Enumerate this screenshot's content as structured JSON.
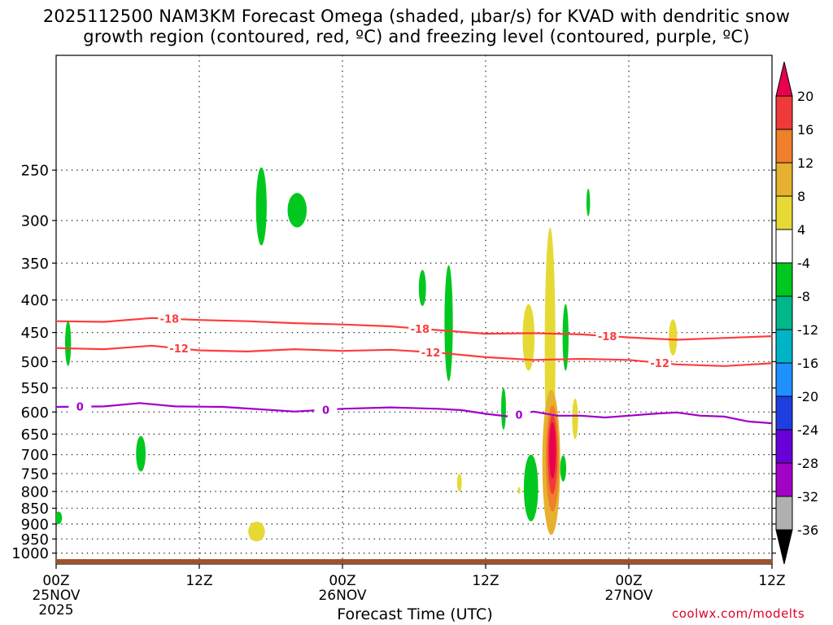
{
  "chart_data": {
    "type": "heatmap",
    "title": "2025112500 NAM3KM Forecast Omega (shaded, μbar/s) for KVAD with dendritic snow",
    "subtitle": "growth region (contoured, red, ºC) and freezing level (contoured, purple, ºC)",
    "xlabel": "Forecast Time (UTC)",
    "ylabel": "",
    "credit": "coolwx.com/modelts",
    "x_ticks": [
      {
        "hour": 0,
        "label": "00Z",
        "date": "25NOV",
        "year": "2025"
      },
      {
        "hour": 12,
        "label": "12Z"
      },
      {
        "hour": 24,
        "label": "00Z",
        "date": "26NOV"
      },
      {
        "hour": 36,
        "label": "12Z"
      },
      {
        "hour": 48,
        "label": "00Z",
        "date": "27NOV"
      },
      {
        "hour": 60,
        "label": "12Z"
      }
    ],
    "xlim": [
      0,
      60
    ],
    "ylim": [
      1040,
      165
    ],
    "y_scale": "log",
    "y_ticks": [
      250,
      300,
      350,
      400,
      450,
      500,
      550,
      600,
      650,
      700,
      750,
      800,
      850,
      900,
      950,
      1000
    ],
    "grid": true,
    "colorbar": {
      "labels": [
        "20",
        "16",
        "12",
        "8",
        "4",
        "-4",
        "-8",
        "-12",
        "-16",
        "-20",
        "-24",
        "-28",
        "-32",
        "-36"
      ],
      "colors": [
        "#e8004f",
        "#f03a3a",
        "#f07f2a",
        "#e6b12e",
        "#e6d934",
        "#ffffff",
        "#00c81e",
        "#00b88a",
        "#00b4c8",
        "#1e90ff",
        "#1f3ee0",
        "#6a00d8",
        "#a300c8",
        "#b0b0b0",
        "#000000"
      ]
    },
    "contours": [
      {
        "label": "-18",
        "color": "#ff3c3c",
        "points": [
          [
            0,
            432
          ],
          [
            4,
            433
          ],
          [
            8,
            427
          ],
          [
            12,
            430
          ],
          [
            16,
            432
          ],
          [
            20,
            435
          ],
          [
            24,
            437
          ],
          [
            28,
            440
          ],
          [
            32,
            446
          ],
          [
            36,
            452
          ],
          [
            40,
            451
          ],
          [
            44,
            453
          ],
          [
            48,
            458
          ],
          [
            52,
            462
          ],
          [
            56,
            459
          ],
          [
            60,
            456
          ]
        ],
        "label_at": [
          [
            9.5,
            430
          ],
          [
            30.5,
            445
          ],
          [
            46.2,
            455
          ]
        ]
      },
      {
        "label": "-12",
        "color": "#ff3c3c",
        "points": [
          [
            0,
            476
          ],
          [
            4,
            478
          ],
          [
            8,
            472
          ],
          [
            12,
            480
          ],
          [
            16,
            482
          ],
          [
            20,
            478
          ],
          [
            24,
            481
          ],
          [
            28,
            479
          ],
          [
            32,
            484
          ],
          [
            36,
            492
          ],
          [
            40,
            497
          ],
          [
            44,
            495
          ],
          [
            48,
            497
          ],
          [
            52,
            505
          ],
          [
            56,
            508
          ],
          [
            60,
            503
          ]
        ],
        "label_at": [
          [
            10.3,
            478
          ],
          [
            31.4,
            484
          ],
          [
            50.6,
            505
          ]
        ]
      },
      {
        "label": "0",
        "color": "#a000c8",
        "points": [
          [
            0,
            589
          ],
          [
            4,
            588
          ],
          [
            7,
            581
          ],
          [
            10,
            588
          ],
          [
            14,
            589
          ],
          [
            17,
            594
          ],
          [
            20,
            599
          ],
          [
            24,
            593
          ],
          [
            28,
            590
          ],
          [
            32,
            593
          ],
          [
            34,
            596
          ],
          [
            36,
            604
          ],
          [
            38,
            610
          ],
          [
            40,
            599
          ],
          [
            42,
            608
          ],
          [
            44,
            608
          ],
          [
            46,
            612
          ],
          [
            48,
            608
          ],
          [
            50,
            604
          ],
          [
            52,
            601
          ],
          [
            54,
            608
          ],
          [
            56,
            610
          ],
          [
            58,
            621
          ],
          [
            60,
            625
          ]
        ],
        "label_at": [
          [
            2,
            588
          ],
          [
            22.6,
            592
          ],
          [
            38.8,
            609
          ]
        ]
      }
    ],
    "omega_blobs": [
      {
        "x": 1.0,
        "p": 468,
        "dx": 0.25,
        "dp": 38,
        "value": -6
      },
      {
        "x": 0.2,
        "p": 880,
        "dx": 0.3,
        "dp": 20,
        "value": -6
      },
      {
        "x": 7.1,
        "p": 698,
        "dx": 0.4,
        "dp": 45,
        "value": -6
      },
      {
        "x": 17.2,
        "p": 285,
        "dx": 0.45,
        "dp": 40,
        "value": -6
      },
      {
        "x": 20.2,
        "p": 289,
        "dx": 0.8,
        "dp": 18,
        "value": -6
      },
      {
        "x": 30.7,
        "p": 383,
        "dx": 0.3,
        "dp": 25,
        "value": -6
      },
      {
        "x": 32.9,
        "p": 435,
        "dx": 0.35,
        "dp": 90,
        "value": -6
      },
      {
        "x": 37.5,
        "p": 593,
        "dx": 0.2,
        "dp": 45,
        "value": -6
      },
      {
        "x": 39.8,
        "p": 790,
        "dx": 0.6,
        "dp": 95,
        "value": -6
      },
      {
        "x": 42.7,
        "p": 458,
        "dx": 0.25,
        "dp": 55,
        "value": -6
      },
      {
        "x": 42.5,
        "p": 736,
        "dx": 0.25,
        "dp": 35,
        "value": -6
      },
      {
        "x": 44.6,
        "p": 281,
        "dx": 0.15,
        "dp": 14,
        "value": -6
      },
      {
        "x": 16.8,
        "p": 925,
        "dx": 0.7,
        "dp": 33,
        "value": 5
      },
      {
        "x": 33.8,
        "p": 775,
        "dx": 0.2,
        "dp": 25,
        "value": 5
      },
      {
        "x": 38.8,
        "p": 797,
        "dx": 0.1,
        "dp": 10,
        "value": 5
      },
      {
        "x": 39.6,
        "p": 458,
        "dx": 0.5,
        "dp": 55,
        "value": 6
      },
      {
        "x": 41.4,
        "p": 480,
        "dx": 0.45,
        "dp": 200,
        "value": 6
      },
      {
        "x": 43.5,
        "p": 615,
        "dx": 0.25,
        "dp": 45,
        "value": 5
      },
      {
        "x": 51.7,
        "p": 458,
        "dx": 0.35,
        "dp": 30,
        "value": 5
      },
      {
        "x": 41.5,
        "p": 720,
        "dx": 0.75,
        "dp": 185,
        "value": 9
      },
      {
        "x": 41.6,
        "p": 710,
        "dx": 0.55,
        "dp": 135,
        "value": 14
      },
      {
        "x": 41.6,
        "p": 700,
        "dx": 0.4,
        "dp": 100,
        "value": 18
      },
      {
        "x": 41.6,
        "p": 690,
        "dx": 0.28,
        "dp": 70,
        "value": 21
      }
    ],
    "terrain": {
      "label": "ground",
      "color": "#a0522d",
      "top_p": 1022
    }
  }
}
